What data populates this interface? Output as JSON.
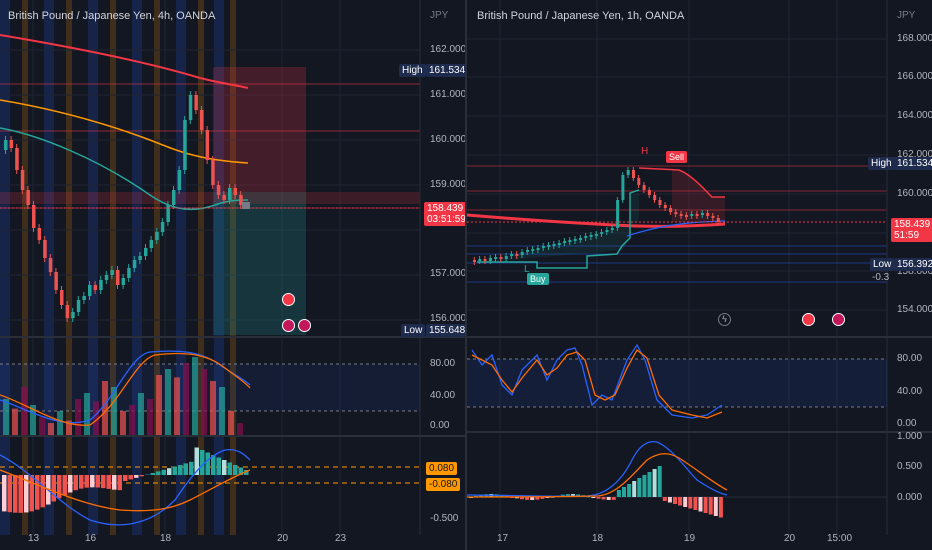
{
  "left": {
    "title": "British Pound / Japanese Yen, 4h, OANDA",
    "currency": "JPY",
    "price_axis": [
      "162.000",
      "161.000",
      "160.000",
      "159.000",
      "157.000",
      "156.000"
    ],
    "high_label": "High",
    "high_value": "161.534",
    "low_label": "Low",
    "low_value": "155.648",
    "current_price": "158.439",
    "countdown": "03:51:59",
    "stoch_axis": [
      "80.00",
      "40.00",
      "0.00"
    ],
    "macd_axis": [
      "0.080",
      "-0.080",
      "-0.500"
    ],
    "dates": [
      "13",
      "16",
      "18",
      "20",
      "23"
    ]
  },
  "right": {
    "title": "British Pound / Japanese Yen, 1h, OANDA",
    "currency": "JPY",
    "price_axis": [
      "168.000",
      "166.000",
      "164.000",
      "162.000",
      "160.000",
      "158.000",
      "156.000",
      "154.000"
    ],
    "high_label": "High",
    "high_value": "161.534",
    "low_label": "Low",
    "low_value": "156.392",
    "low_extra": "-0.3",
    "current_price": "158.439",
    "countdown": "51:59",
    "buy_label": "Buy",
    "sell_label": "Sell",
    "h_label": "H",
    "l_label": "L",
    "stoch_axis": [
      "80.00",
      "40.00",
      "0.00"
    ],
    "macd_axis": [
      "1.000",
      "0.500",
      "0.000"
    ],
    "dates": [
      "17",
      "18",
      "19",
      "20",
      "15:00"
    ]
  },
  "colors": {
    "background": "#131722",
    "bull": "#26a69a",
    "bear": "#ef5350",
    "accent_red": "#f23645",
    "orange": "#ff9800",
    "blue_line": "#2962ff"
  }
}
